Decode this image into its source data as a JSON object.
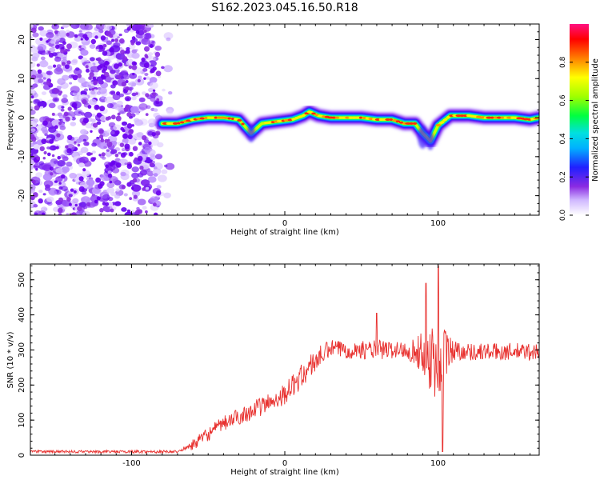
{
  "title": "S162.2023.045.16.50.R18",
  "chart_data": [
    {
      "type": "heatmap",
      "xlabel": "Height of straight line (km)",
      "ylabel": "Frequency (Hz)",
      "xlim": [
        -166,
        166
      ],
      "ylim": [
        -25,
        24
      ],
      "x_ticks": [
        -100,
        0,
        100
      ],
      "y_ticks": [
        -20,
        -10,
        0,
        10,
        20
      ],
      "noise_region_x": [
        -166,
        -82
      ],
      "ridge": {
        "x": [
          -80,
          -70,
          -60,
          -50,
          -40,
          -30,
          -22,
          -15,
          -5,
          5,
          12,
          16,
          22,
          30,
          40,
          50,
          60,
          70,
          78,
          85,
          90,
          95,
          100,
          108,
          120,
          130,
          140,
          150,
          160,
          166
        ],
        "y": [
          -1.5,
          -1.5,
          -0.5,
          0,
          0,
          -0.5,
          -4,
          -1.5,
          -1,
          -0.5,
          0.5,
          1.5,
          0.5,
          0,
          0,
          0,
          -0.5,
          -0.5,
          -1.5,
          -1.5,
          -4,
          -6,
          -2,
          0.5,
          0.5,
          0,
          0,
          0,
          -0.5,
          0
        ]
      },
      "colorbar": {
        "label": "Normalized spectral amplitude",
        "range": [
          0.0,
          1.0
        ],
        "ticks": [
          "0.0",
          "0.2",
          "0.4",
          "0.6",
          "0.8"
        ],
        "tick_values": [
          0.0,
          0.2,
          0.4,
          0.6,
          0.8
        ]
      }
    },
    {
      "type": "line",
      "xlabel": "Height of straight line (km)",
      "ylabel": "SNR (10 * v/v)",
      "xlim": [
        -166,
        166
      ],
      "ylim": [
        0,
        545
      ],
      "x_ticks": [
        -100,
        0,
        100
      ],
      "y_ticks": [
        0,
        100,
        200,
        300,
        400,
        500
      ],
      "color": "#e8312f",
      "series": [
        {
          "trend_x": [
            -166,
            -100,
            -70,
            -60,
            -50,
            -40,
            -30,
            -20,
            -10,
            0,
            10,
            20,
            30,
            40,
            50,
            60,
            70,
            80,
            90,
            100,
            110,
            120,
            130,
            140,
            150,
            166
          ],
          "trend_y": [
            10,
            10,
            10,
            30,
            60,
            90,
            110,
            130,
            150,
            175,
            220,
            270,
            305,
            300,
            300,
            300,
            300,
            300,
            290,
            270,
            300,
            295,
            295,
            295,
            295,
            295
          ],
          "noise_amp": [
            0,
            0,
            0,
            15,
            20,
            22,
            24,
            26,
            28,
            30,
            35,
            35,
            25,
            25,
            25,
            30,
            25,
            25,
            60,
            140,
            30,
            25,
            25,
            25,
            25,
            25
          ],
          "peaks": [
            {
              "x": 60,
              "y": 405
            },
            {
              "x": 92,
              "y": 490
            },
            {
              "x": 100,
              "y": 540
            },
            {
              "x": 103,
              "y": 10
            }
          ]
        }
      ]
    }
  ]
}
